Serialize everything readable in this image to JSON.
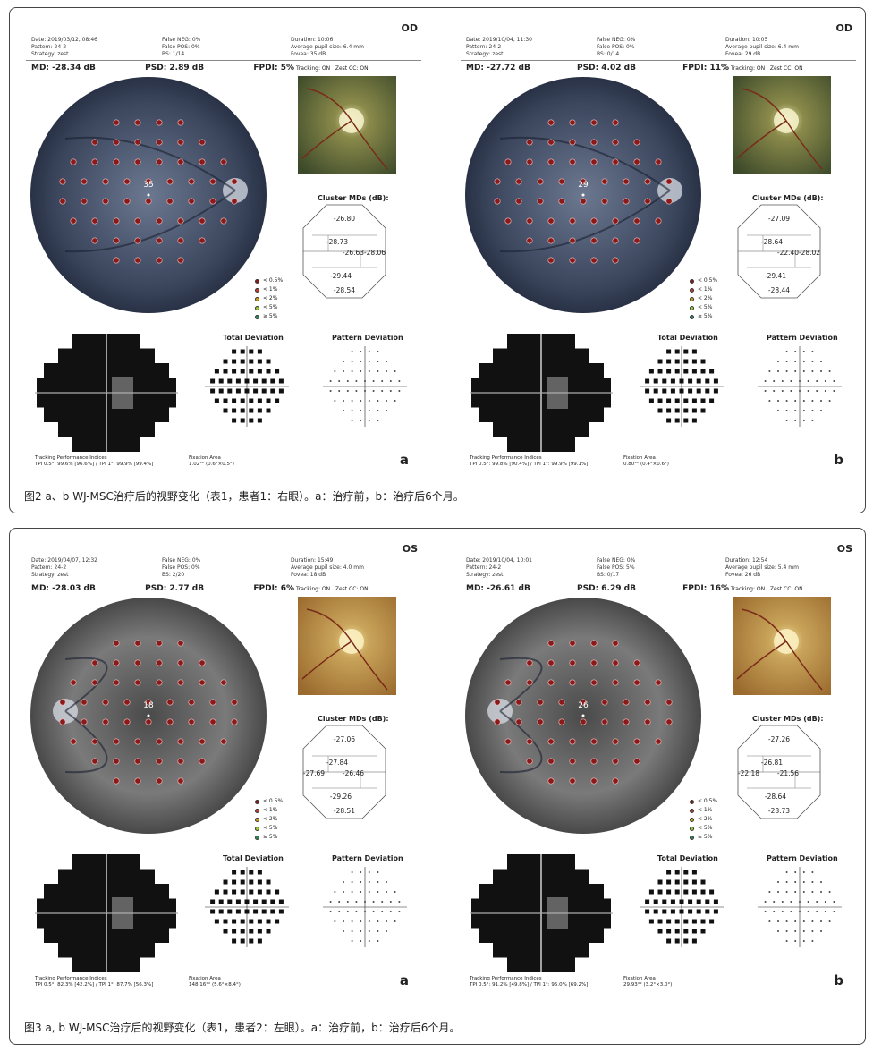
{
  "figures": [
    {
      "id": "fig2",
      "caption": "图2 a、b WJ-MSC治疗后的视野变化（表1，患者1：右眼）。a：治疗前，b：治疗后6个月。",
      "panels": [
        {
          "letter": "a",
          "eye": "OD",
          "date": "Date: 2019/03/12, 08:46",
          "pattern": "Pattern: 24-2",
          "strategy": "Strategy: zest",
          "false_neg": "False NEG: 0%",
          "false_pos": "False POS: 0%",
          "bs": "BS: 1/14",
          "duration": "Duration: 10:06",
          "pupil": "Average pupil size: 6.4 mm",
          "fovea": "Fovea: 35 dB",
          "md": "MD: -28.34 dB",
          "psd": "PSD: 2.89 dB",
          "fpdi": "FPDI: 5%",
          "tracking": "Tracking: ON",
          "zest": "Zest CC: ON",
          "center_value": "35",
          "cluster": [
            "-26.80",
            "-28.73",
            "-26.63",
            "-28.06",
            "-29.44",
            "-28.54"
          ],
          "tpi": "TPI 0.5°: 99.6% [96.6%] / TPI 1°: 99.9% [99.4%]",
          "fixation": "1.02°² (0.6°×0.5°)",
          "fundus_style": "blue"
        },
        {
          "letter": "b",
          "eye": "OD",
          "date": "Date: 2019/10/04, 11:30",
          "pattern": "Pattern: 24-2",
          "strategy": "Strategy: zest",
          "false_neg": "False NEG: 0%",
          "false_pos": "False POS: 0%",
          "bs": "BS: 0/14",
          "duration": "Duration: 10:05",
          "pupil": "Average pupil size: 6.4 mm",
          "fovea": "Fovea: 29 dB",
          "md": "MD: -27.72 dB",
          "psd": "PSD: 4.02 dB",
          "fpdi": "FPDI: 11%",
          "tracking": "Tracking: ON",
          "zest": "Zest CC: ON",
          "center_value": "29",
          "cluster": [
            "-27.09",
            "-28.64",
            "-22.40",
            "-28.02",
            "-29.41",
            "-28.44"
          ],
          "tpi": "TPI 0.5°: 99.8% [90.4%] / TPI 1°: 99.9% [99.1%]",
          "fixation": "0.80°² (0.4°×0.6°)",
          "fundus_style": "blue"
        }
      ]
    },
    {
      "id": "fig3",
      "caption": "图3 a, b WJ-MSC治疗后的视野变化（表1，患者2：左眼）。a：治疗前，b：治疗后6个月。",
      "panels": [
        {
          "letter": "a",
          "eye": "OS",
          "date": "Date: 2019/04/07, 12:32",
          "pattern": "Pattern: 24-2",
          "strategy": "Strategy: zest",
          "false_neg": "False NEG: 0%",
          "false_pos": "False POS: 0%",
          "bs": "BS: 2/20",
          "duration": "Duration: 15:49",
          "pupil": "Average pupil size: 4.0 mm",
          "fovea": "Fovea: 18 dB",
          "md": "MD: -28.03 dB",
          "psd": "PSD: 2.77 dB",
          "fpdi": "FPDI: 6%",
          "tracking": "Tracking: ON",
          "zest": "Zest CC: ON",
          "center_value": "18",
          "cluster": [
            "-27.06",
            "-27.84",
            "-26.46",
            "-27.69",
            "-29.26",
            "-28.51"
          ],
          "tpi": "TPI 0.5°: 82.3% [42.2%] / TPI 1°: 87.7% [56.3%]",
          "fixation": "148.16°² (5.6°×8.4°)",
          "fundus_style": "gray"
        },
        {
          "letter": "b",
          "eye": "OS",
          "date": "Date: 2019/10/04, 10:01",
          "pattern": "Pattern: 24-2",
          "strategy": "Strategy: zest",
          "false_neg": "False NEG: 0%",
          "false_pos": "False POS: 5%",
          "bs": "BS: 0/17",
          "duration": "Duration: 12:54",
          "pupil": "Average pupil size: 5.4 mm",
          "fovea": "Fovea: 26 dB",
          "md": "MD: -26.61 dB",
          "psd": "PSD: 6.29 dB",
          "fpdi": "FPDI: 16%",
          "tracking": "Tracking: ON",
          "zest": "Zest CC: ON",
          "center_value": "26",
          "cluster": [
            "-27.26",
            "-26.81",
            "-21.56",
            "-22.18",
            "-28.64",
            "-28.73"
          ],
          "tpi": "TPI 0.5°: 91.2% [49.8%] / TPI 1°: 95.0% [69.2%]",
          "fixation": "29.93°² (3.2°×3.0°)",
          "fundus_style": "gray"
        }
      ]
    }
  ],
  "shared": {
    "cluster_title": "Cluster MDs (dB):",
    "total_deviation": "Total Deviation",
    "pattern_deviation": "Pattern Deviation",
    "tpi_label": "Tracking Performance Indices",
    "fixation_label": "Fixation Area",
    "legend": [
      {
        "label": "< 0.5%",
        "color": "#8b1a1a"
      },
      {
        "label": "< 1%",
        "color": "#c0392b"
      },
      {
        "label": "< 2%",
        "color": "#d4a017"
      },
      {
        "label": "< 5%",
        "color": "#9acd32"
      },
      {
        "label": "≥ 5%",
        "color": "#2e8b57"
      }
    ]
  }
}
